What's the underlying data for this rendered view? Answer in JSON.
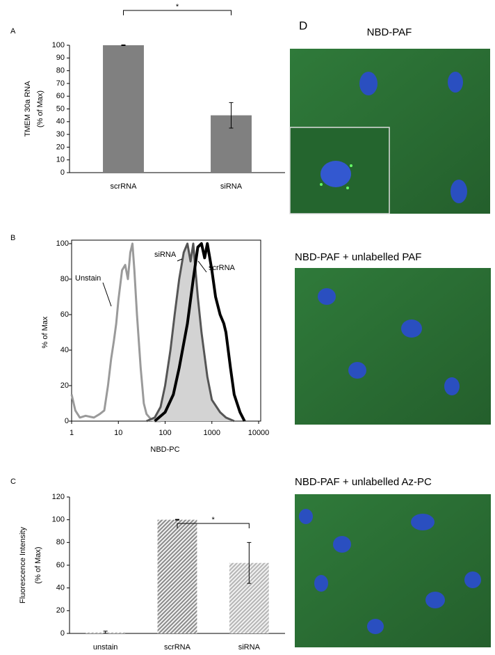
{
  "chart_data": [
    {
      "type": "bar",
      "panel_label": "A",
      "y_label": [
        "TMEM 30a RNA",
        "(% of Max)"
      ],
      "categories": [
        "scrRNA",
        "siRNA"
      ],
      "values": [
        100,
        45
      ],
      "errors": [
        0.3,
        10
      ],
      "color": "#808080",
      "ylim": [
        0,
        100
      ],
      "yticks": [
        0,
        10,
        20,
        30,
        40,
        50,
        60,
        70,
        80,
        90,
        100
      ],
      "significance_label": "*"
    },
    {
      "type": "line",
      "panel_label": "B",
      "x_label": "NBD-PC",
      "y_label": "% of Max",
      "log_x": true,
      "xlim": [
        1,
        10000
      ],
      "xticks": [
        1,
        10,
        100,
        1000,
        10000
      ],
      "ylim": [
        0,
        100
      ],
      "yticks": [
        0,
        20,
        40,
        60,
        80,
        100
      ],
      "series": [
        {
          "name": "Unstain",
          "color": "#9a9a9a",
          "x": [
            1,
            1.2,
            1.5,
            2,
            3,
            4,
            5,
            6,
            7,
            8,
            9,
            10,
            12,
            14,
            16,
            18,
            20,
            22,
            25,
            30,
            35,
            40,
            50,
            60,
            80
          ],
          "values": [
            15,
            6,
            2,
            3,
            2,
            4,
            6,
            20,
            35,
            45,
            55,
            68,
            85,
            88,
            80,
            95,
            100,
            85,
            60,
            30,
            10,
            4,
            1,
            0,
            0
          ]
        },
        {
          "name": "siRNA",
          "color": "#555555",
          "fill": "#d3d3d3",
          "x": [
            40,
            60,
            80,
            100,
            130,
            160,
            200,
            250,
            300,
            350,
            400,
            500,
            600,
            800,
            1000,
            1500,
            2000,
            3000
          ],
          "values": [
            0,
            2,
            8,
            20,
            40,
            60,
            80,
            95,
            100,
            90,
            100,
            70,
            50,
            25,
            12,
            5,
            2,
            0
          ]
        },
        {
          "name": "scrRNA",
          "color": "#000000",
          "x": [
            60,
            100,
            150,
            200,
            300,
            400,
            500,
            600,
            700,
            800,
            1000,
            1200,
            1500,
            1800,
            2000,
            2500,
            3000,
            4000,
            5000
          ],
          "values": [
            0,
            5,
            15,
            30,
            55,
            80,
            98,
            100,
            92,
            100,
            85,
            70,
            60,
            55,
            50,
            30,
            15,
            5,
            0
          ]
        }
      ]
    },
    {
      "type": "bar",
      "panel_label": "C",
      "y_label": [
        "Fluorescence Intensity",
        "(% of Max)"
      ],
      "categories": [
        "unstain",
        "scrRNA",
        "siRNA"
      ],
      "values": [
        1,
        100,
        62
      ],
      "errors": [
        1,
        0.3,
        18
      ],
      "colors": [
        "#bbbbbb",
        "#8a8a8a",
        "#b5b5b5"
      ],
      "ylim": [
        0,
        120
      ],
      "yticks": [
        0,
        20,
        40,
        60,
        80,
        100,
        120
      ],
      "significance_label": "*"
    }
  ],
  "image_panel": {
    "label": "D",
    "captions": [
      "NBD-PAF",
      "NBD-PAF + unlabelled PAF",
      "NBD-PAF + unlabelled Az-PC"
    ]
  }
}
